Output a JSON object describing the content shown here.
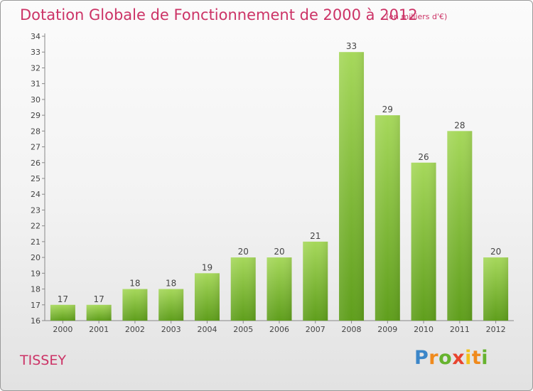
{
  "title": "Dotation Globale de Fonctionnement de 2000 à 2012",
  "unit": "(en milliers d'€)",
  "commune": "TISSEY",
  "logo": [
    "P",
    "r",
    "o",
    "x",
    "i",
    "t",
    "i"
  ],
  "colors": {
    "title": "#cc3366",
    "bar_top": "#a6d85b",
    "bar_bottom": "#5f9e1c"
  },
  "chart_data": {
    "type": "bar",
    "title": "Dotation Globale de Fonctionnement de 2000 à 2012",
    "subtitle": "(en milliers d'€)",
    "xlabel": "",
    "ylabel": "",
    "categories": [
      "2000",
      "2001",
      "2002",
      "2003",
      "2004",
      "2005",
      "2006",
      "2007",
      "2008",
      "2009",
      "2010",
      "2011",
      "2012"
    ],
    "values": [
      17,
      17,
      18,
      18,
      19,
      20,
      20,
      21,
      33,
      29,
      26,
      28,
      20
    ],
    "ylim": [
      16,
      34
    ],
    "yticks": [
      16,
      17,
      18,
      19,
      20,
      21,
      22,
      23,
      24,
      25,
      26,
      27,
      28,
      29,
      30,
      31,
      32,
      33,
      34
    ],
    "grid": false,
    "legend": "none"
  }
}
